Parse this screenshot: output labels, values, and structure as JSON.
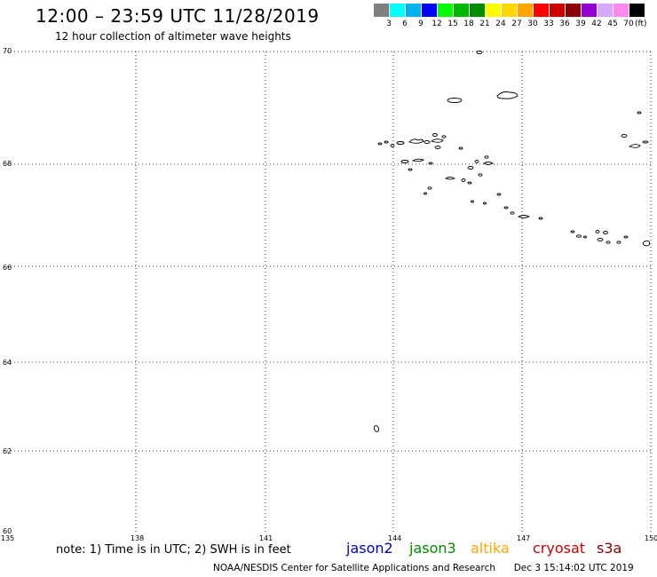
{
  "header": {
    "title": "12:00 – 23:59 UTC 11/28/2019",
    "subtitle": "12 hour collection of altimeter wave heights"
  },
  "legend": {
    "colors": [
      "#7f7f7f",
      "#00ffff",
      "#00b2ee",
      "#0000ff",
      "#00ff00",
      "#00b800",
      "#008b00",
      "#ffff00",
      "#ffd700",
      "#ffa500",
      "#ff0000",
      "#cd0000",
      "#8b0000",
      "#9400d3",
      "#d8a8ff",
      "#ff88ee",
      "#000000"
    ],
    "labels": [
      "3",
      "6",
      "9",
      "12",
      "15",
      "18",
      "21",
      "24",
      "27",
      "30",
      "33",
      "36",
      "39",
      "42",
      "45",
      "70"
    ],
    "unit": "(ft)"
  },
  "map": {
    "lat_labels": [
      "70",
      "68",
      "66",
      "64",
      "62",
      "60"
    ],
    "lon_labels": [
      "135",
      "138",
      "141",
      "144",
      "147",
      "150"
    ]
  },
  "footer": {
    "note": "note: 1) Time is in UTC; 2) SWH is in feet",
    "satellites": [
      {
        "name": "jason2",
        "color": "#0000cc"
      },
      {
        "name": "jason3",
        "color": "#008b00"
      },
      {
        "name": "altika",
        "color": "#ffa500"
      },
      {
        "name": "cryosat",
        "color": "#cc0000"
      },
      {
        "name": "s3a",
        "color": "#8b0000"
      }
    ],
    "credit": "NOAA/NESDIS Center for Satellite Applications and Research",
    "timestamp": "Dec  3 15:14:02 UTC 2019"
  }
}
